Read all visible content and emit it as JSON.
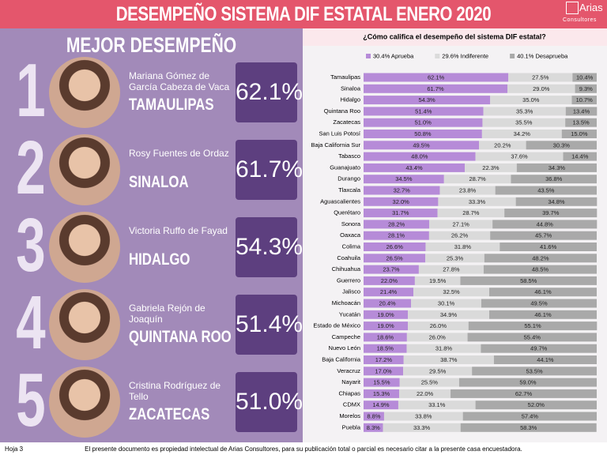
{
  "header": {
    "title": "DESEMPEÑO SISTEMA DIF ESTATAL ENERO 2020",
    "logo_name": "Arias",
    "logo_sub": "Consultores"
  },
  "left_panel": {
    "heading": "MEJOR DESEMPEÑO",
    "entries": [
      {
        "rank": 1,
        "name": "Mariana Gómez de García Cabeza de Vaca",
        "state": "TAMAULIPAS",
        "score": "62.1%"
      },
      {
        "rank": 2,
        "name": "Rosy Fuentes de Ordaz",
        "state": "SINALOA",
        "score": "61.7%"
      },
      {
        "rank": 3,
        "name": "Victoria Ruffo de Fayad",
        "state": "HIDALGO",
        "score": "54.3%"
      },
      {
        "rank": 4,
        "name": "Gabriela Rejón de Joaquín",
        "state": "QUINTANA ROO",
        "score": "51.4%"
      },
      {
        "rank": 5,
        "name": "Cristina Rodríguez de Tello",
        "state": "ZACATECAS",
        "score": "51.0%"
      }
    ]
  },
  "chart_data": {
    "type": "bar",
    "orientation": "horizontal",
    "stacked": true,
    "title": "¿Cómo califica el desempeño del sistema DIF estatal?",
    "categories": [
      "Tamaulipas",
      "Sinaloa",
      "Hidalgo",
      "Quintana Roo",
      "Zacatecas",
      "San Luis Potosí",
      "Baja California Sur",
      "Tabasco",
      "Guanajuato",
      "Durango",
      "Tlaxcala",
      "Aguascalientes",
      "Querétaro",
      "Sonora",
      "Oaxaca",
      "Colima",
      "Coahuila",
      "Chihuahua",
      "Guerrero",
      "Jalisco",
      "Michoacán",
      "Yucatán",
      "Estado de México",
      "Campeche",
      "Nuevo León",
      "Baja California",
      "Veracruz",
      "Nayarit",
      "Chiapas",
      "CDMX",
      "Morelos",
      "Puebla"
    ],
    "series": [
      {
        "name": "30.4% Aprueba",
        "color": "#b68bd8",
        "values": [
          62.1,
          61.7,
          54.3,
          51.4,
          51.0,
          50.8,
          49.5,
          48.0,
          43.4,
          34.5,
          32.7,
          32.0,
          31.7,
          28.2,
          28.1,
          26.6,
          26.5,
          23.7,
          22.0,
          21.4,
          20.4,
          19.0,
          19.0,
          18.6,
          18.5,
          17.2,
          17.0,
          15.5,
          15.3,
          14.9,
          8.8,
          8.3
        ],
        "value_labels": [
          "62.1%",
          "61.7%",
          "54.3%",
          "51.4%",
          "51.0%",
          "50.8%",
          "49.5%",
          "48.0%",
          "43.4%",
          "34.5%",
          "32.7%",
          "32.0%",
          "31.7%",
          "28.2%",
          "28.1%",
          "26.6%",
          "26.5%",
          "23.7%",
          "22.0%",
          "21.4%",
          "20.4%",
          "19.0%",
          "19.0%",
          "18.6%",
          "18.5%",
          "17.2%",
          "17.0%",
          "15.5%",
          "15.3%",
          "14.9%",
          "8.8%",
          "8.3%"
        ]
      },
      {
        "name": "29.6% Indiferente",
        "color": "#dadada",
        "values": [
          27.5,
          29.0,
          35.0,
          35.3,
          35.5,
          34.2,
          20.2,
          37.6,
          22.3,
          28.7,
          23.8,
          33.3,
          28.7,
          27.1,
          26.2,
          31.8,
          25.3,
          27.8,
          19.5,
          32.5,
          30.1,
          34.9,
          26.0,
          26.0,
          31.8,
          38.7,
          29.5,
          25.5,
          22.0,
          33.1,
          33.8,
          33.3
        ],
        "value_labels": [
          "27.5%",
          "29.0%",
          "35.0%",
          "35.3%",
          "35.5%",
          "34.2%",
          "20.2%",
          "37.6%",
          "22.3%",
          "28.7%",
          "23.8%",
          "33.3%",
          "28.7%",
          "27.1%",
          "26.2%",
          "31.8%",
          "25.3%",
          "27.8%",
          "19.5%",
          "32.5%",
          "30.1%",
          "34.9%",
          "26.0%",
          "26.0%",
          "31.8%",
          "38.7%",
          "29.5%",
          "25.5%",
          "22.0%",
          "33.1%",
          "33.8%",
          "33.3%"
        ]
      },
      {
        "name": "40.1% Desaprueba",
        "color": "#a9a9a9",
        "values": [
          10.4,
          9.3,
          10.7,
          13.4,
          13.5,
          15.0,
          30.3,
          14.4,
          34.3,
          36.8,
          43.5,
          34.8,
          39.7,
          44.8,
          45.7,
          41.6,
          48.2,
          48.5,
          58.5,
          46.1,
          49.5,
          46.1,
          55.1,
          55.4,
          49.7,
          44.1,
          53.5,
          59.0,
          62.7,
          52.0,
          57.4,
          58.3
        ],
        "value_labels": [
          "10.4%",
          "9.3%",
          "10.7%",
          "13.4%",
          "13.5%",
          "15.0%",
          "30.3%",
          "14.4%",
          "34.3%",
          "36.8%",
          "43.5%",
          "34.8%",
          "39.7%",
          "44.8%",
          "45.7%",
          "41.6%",
          "48.2%",
          "48.5%",
          "58.5%",
          "46.1%",
          "49.5%",
          "46.1%",
          "55.1%",
          "55.4%",
          "49.7%",
          "44.1%",
          "53.5%",
          "59.0%",
          "62.7%",
          "52.0%",
          "57.4%",
          "58.3%"
        ]
      }
    ],
    "xlim": [
      0,
      100
    ]
  },
  "footer": {
    "page": "Hoja 3",
    "disclaimer": "El presente documento es propiedad intelectual de Arias Consultores, para su publicación total o parcial es necesario citar a la presente casa encuestadora."
  }
}
